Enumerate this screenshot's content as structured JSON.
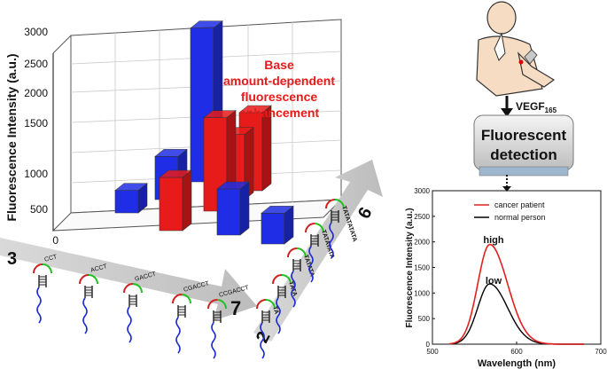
{
  "bar3d": {
    "ylabel": "Fluorescence Intensity (a.u.)",
    "yticks": [
      "3000",
      "2500",
      "2000",
      "1500",
      "1000",
      "500",
      "0"
    ],
    "annotation": [
      "Base",
      "amount-dependent",
      "fluorescence",
      "enhancement"
    ]
  },
  "arrows": {
    "left_start": "3",
    "left_end": "7",
    "right_start": "2",
    "right_end": "6",
    "left_seqs": [
      "CCT",
      "ACCT",
      "GACCT",
      "CGACCT",
      "CCGACCT"
    ],
    "right_seqs": [
      "TA",
      "TATA",
      "TATATA",
      "TATATATA",
      "TATATATATA"
    ]
  },
  "pipeline": {
    "marker": "VEGF",
    "marker_sub": "165",
    "device_label_1": "Fluorescent",
    "device_label_2": "detection"
  },
  "spectrum": {
    "ylabel": "Fluorescence Intensity (a.u.)",
    "xlabel": "Wavelength (nm)",
    "legend": [
      "cancer patient",
      "normal person"
    ],
    "high_label": "high",
    "low_label": "low",
    "xticks": [
      "500",
      "600",
      "700"
    ],
    "yticks": [
      "0",
      "500",
      "1000",
      "1500",
      "2000",
      "2500",
      "3000"
    ],
    "colors": {
      "cancer": "#e02020",
      "normal": "#000000"
    }
  },
  "chart_data": [
    {
      "type": "bar",
      "title": "",
      "ylabel": "Fluorescence Intensity (a.u.)",
      "ylim": [
        0,
        3000
      ],
      "series": [
        {
          "values": [
            380,
            730,
            2600,
            780,
            520
          ]
        },
        {
          "values": [
            900,
            1580,
            1100,
            1320
          ]
        }
      ],
      "colors": [
        "#1f2ee6",
        "#e81b1b"
      ]
    },
    {
      "type": "line",
      "xlabel": "Wavelength (nm)",
      "ylabel": "Fluorescence Intensity (a.u.)",
      "xlim": [
        500,
        700
      ],
      "ylim": [
        0,
        3000
      ],
      "series": [
        {
          "name": "cancer patient",
          "peak_x": 568,
          "peak_y": 1950
        },
        {
          "name": "normal person",
          "peak_x": 568,
          "peak_y": 1180
        }
      ]
    }
  ]
}
